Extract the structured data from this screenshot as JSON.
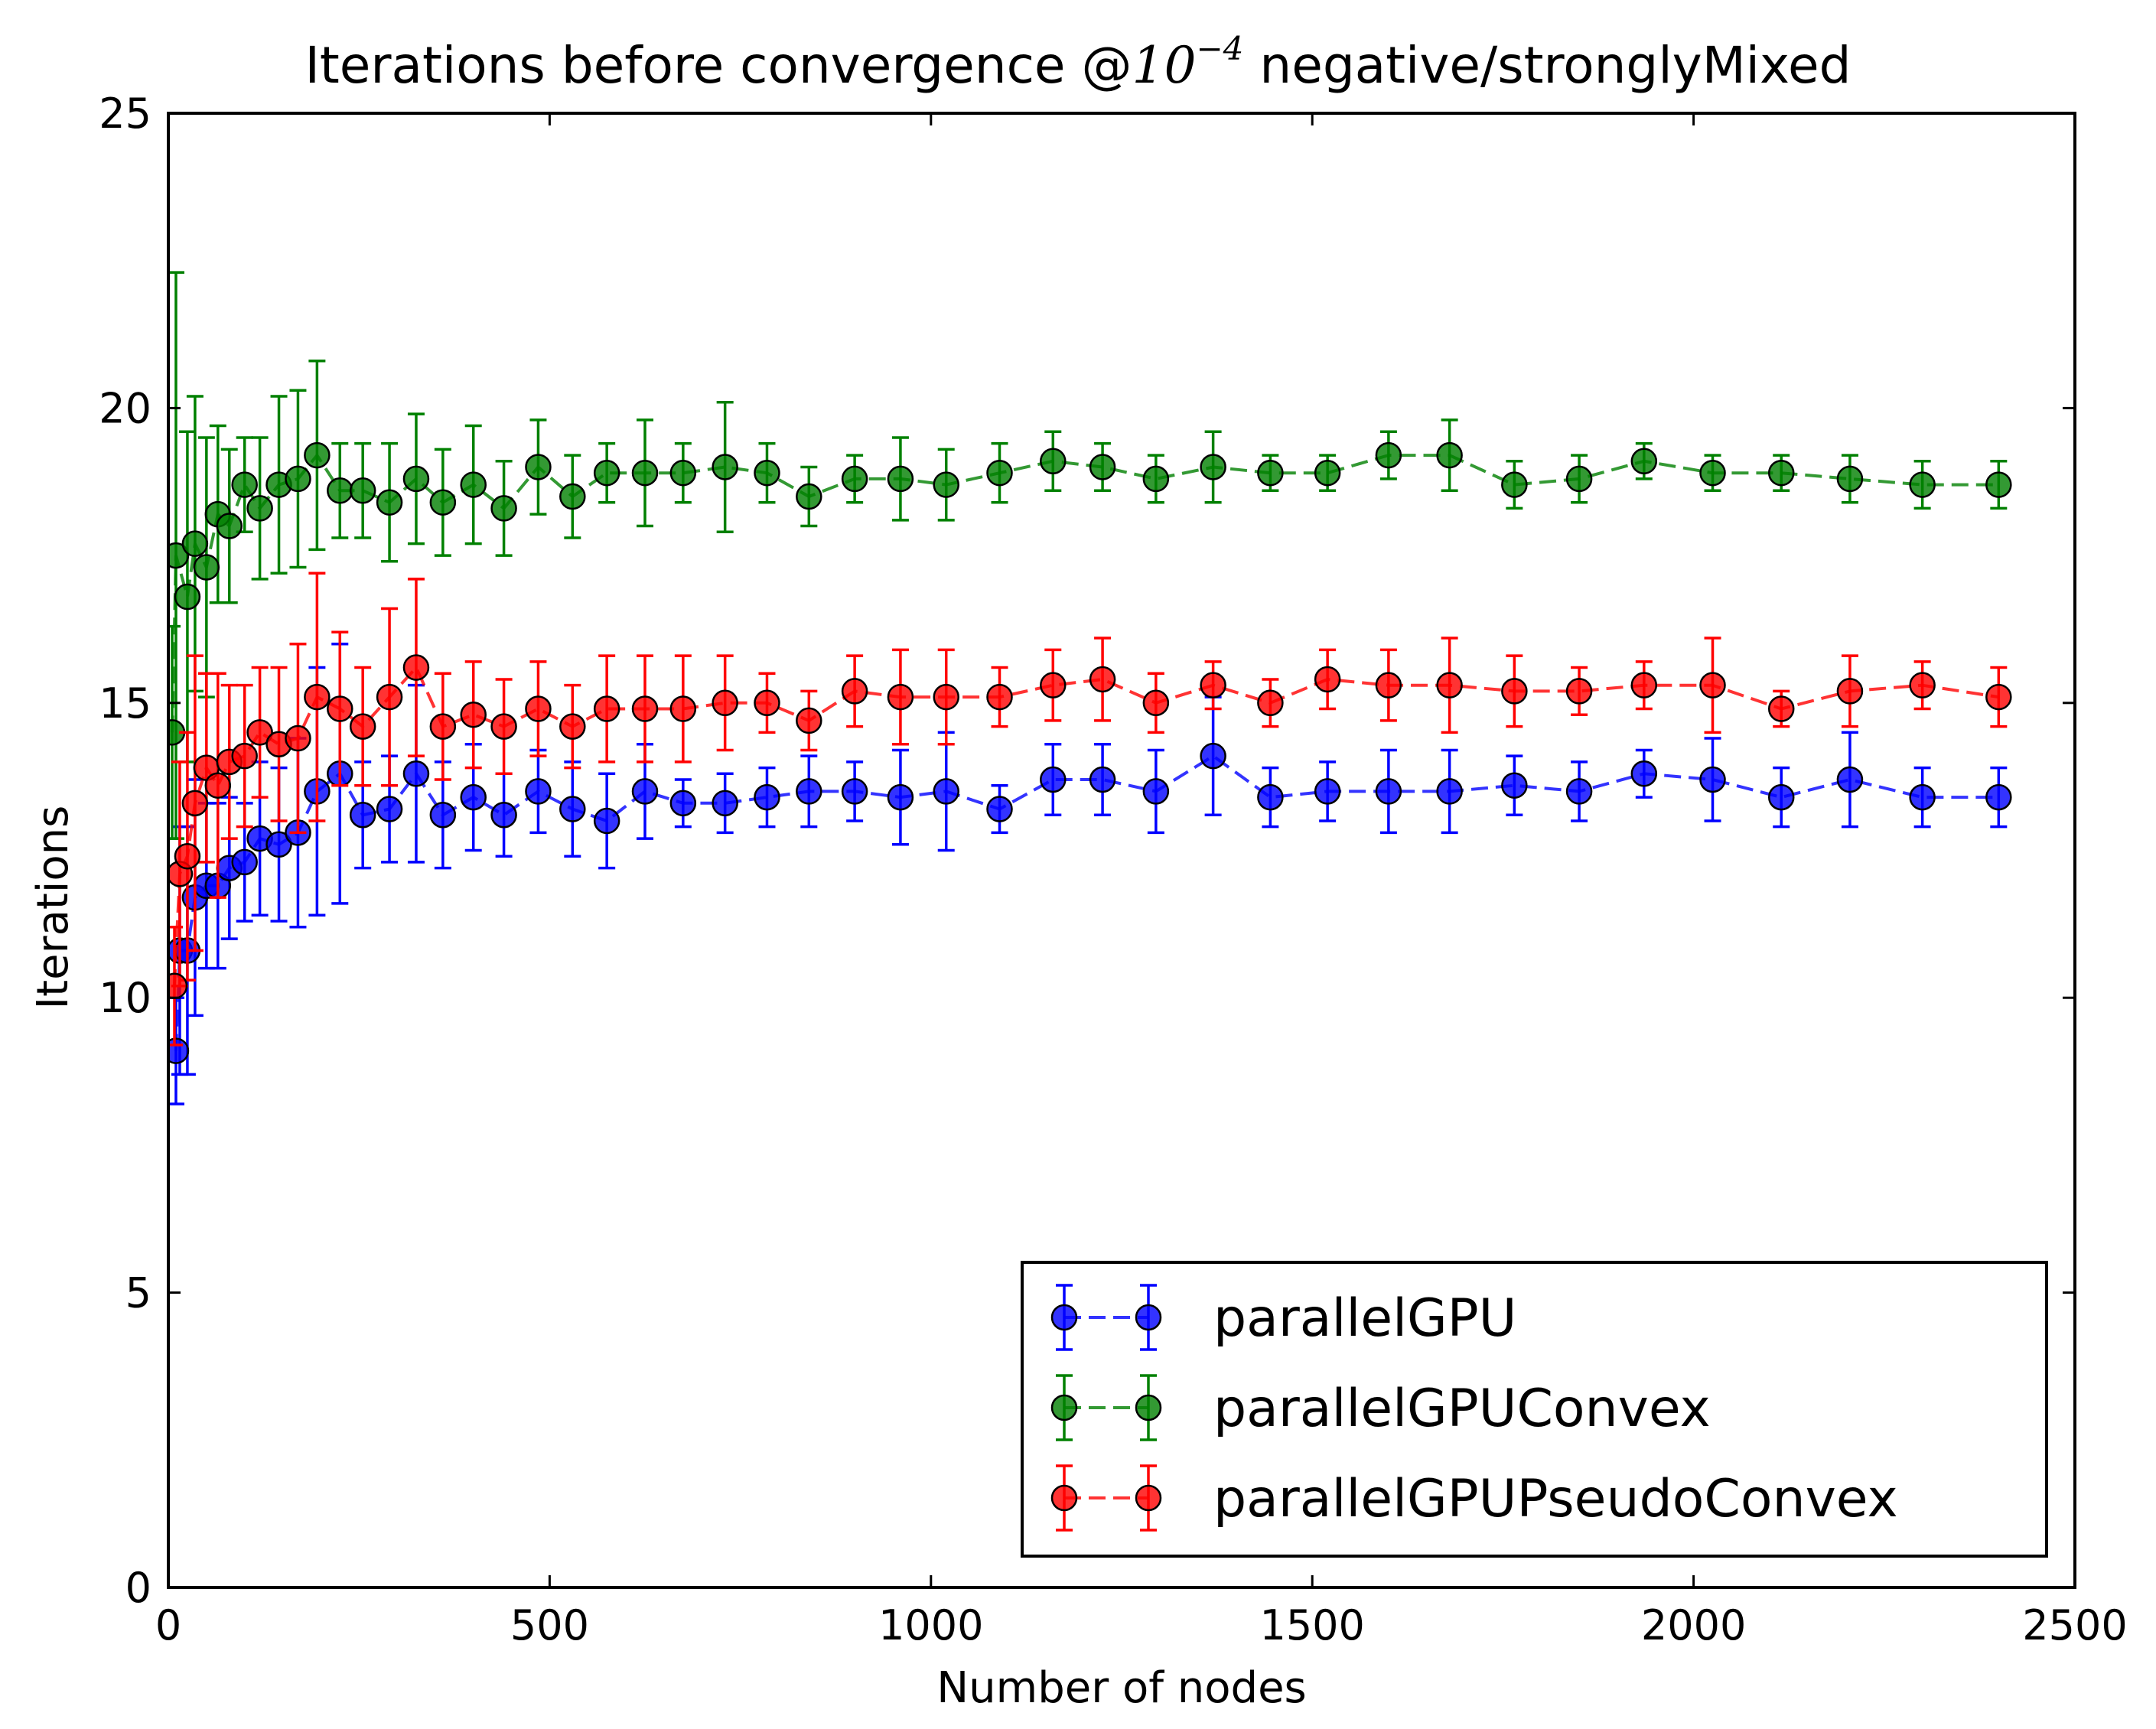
{
  "chart_data": {
    "type": "scatter",
    "title_main": "Iterations before convergence @",
    "title_math_base": "10",
    "title_math_exp": "−4",
    "title_suffix": " negative/stronglyMixed",
    "xlabel": "Number of nodes",
    "ylabel": "Iterations",
    "xlim": [
      0,
      2500
    ],
    "ylim": [
      0,
      25
    ],
    "xticks": [
      0,
      500,
      1000,
      1500,
      2000,
      2500
    ],
    "yticks": [
      0,
      5,
      10,
      15,
      20,
      25
    ],
    "grid": false,
    "legend_position": "lower-right",
    "colors": {
      "parallelGPU": "#0000ff",
      "parallelGPUConvex": "#008000",
      "parallelGPUPseudoConvex": "#ff0000"
    },
    "series": [
      {
        "name": "parallelGPU",
        "color": "#0000ff",
        "x": [
          10,
          15,
          25,
          35,
          50,
          65,
          80,
          100,
          120,
          145,
          170,
          195,
          225,
          255,
          290,
          325,
          360,
          400,
          440,
          485,
          530,
          575,
          625,
          675,
          730,
          785,
          840,
          900,
          960,
          1020,
          1090,
          1160,
          1225,
          1295,
          1370,
          1445,
          1520,
          1600,
          1680,
          1765,
          1850,
          1935,
          2025,
          2115,
          2205,
          2300,
          2400
        ],
        "y": [
          9.1,
          10.8,
          10.8,
          11.7,
          11.9,
          11.9,
          12.2,
          12.3,
          12.7,
          12.6,
          12.8,
          13.5,
          13.8,
          13.1,
          13.2,
          13.8,
          13.1,
          13.4,
          13.1,
          13.5,
          13.2,
          13.0,
          13.5,
          13.3,
          13.3,
          13.4,
          13.5,
          13.5,
          13.4,
          13.5,
          13.2,
          13.7,
          13.7,
          13.5,
          14.1,
          13.4,
          13.5,
          13.5,
          13.5,
          13.6,
          13.5,
          13.8,
          13.7,
          13.4,
          13.7,
          13.4,
          13.4
        ],
        "err": [
          0.9,
          2.1,
          2.1,
          2.0,
          1.4,
          1.4,
          1.2,
          1.0,
          1.3,
          1.3,
          1.6,
          2.1,
          2.2,
          0.9,
          0.9,
          1.5,
          0.9,
          0.9,
          0.7,
          0.7,
          0.8,
          0.8,
          0.8,
          0.4,
          0.5,
          0.5,
          0.6,
          0.5,
          0.8,
          1.0,
          0.4,
          0.6,
          0.6,
          0.7,
          1.0,
          0.5,
          0.5,
          0.7,
          0.7,
          0.5,
          0.5,
          0.4,
          0.7,
          0.5,
          0.8,
          0.5,
          0.5
        ]
      },
      {
        "name": "parallelGPUConvex",
        "color": "#008000",
        "x": [
          5,
          10,
          25,
          35,
          50,
          65,
          80,
          100,
          120,
          145,
          170,
          195,
          225,
          255,
          290,
          325,
          360,
          400,
          440,
          485,
          530,
          575,
          625,
          675,
          730,
          785,
          840,
          900,
          960,
          1020,
          1090,
          1160,
          1225,
          1295,
          1370,
          1445,
          1520,
          1600,
          1680,
          1765,
          1850,
          1935,
          2025,
          2115,
          2205,
          2300,
          2400
        ],
        "y": [
          14.5,
          17.5,
          16.8,
          17.7,
          17.3,
          18.2,
          18.0,
          18.7,
          18.3,
          18.7,
          18.8,
          19.2,
          18.6,
          18.6,
          18.4,
          18.8,
          18.4,
          18.7,
          18.3,
          19.0,
          18.5,
          18.9,
          18.9,
          18.9,
          19.0,
          18.9,
          18.5,
          18.8,
          18.8,
          18.7,
          18.9,
          19.1,
          19.0,
          18.8,
          19.0,
          18.9,
          18.9,
          19.2,
          19.2,
          18.7,
          18.8,
          19.1,
          18.9,
          18.9,
          18.8,
          18.7,
          18.7
        ],
        "err": [
          1.8,
          4.8,
          2.8,
          2.5,
          2.2,
          1.5,
          1.3,
          0.8,
          1.2,
          1.5,
          1.5,
          1.6,
          0.8,
          0.8,
          1.0,
          1.1,
          0.9,
          1.0,
          0.8,
          0.8,
          0.7,
          0.5,
          0.9,
          0.5,
          1.1,
          0.5,
          0.5,
          0.4,
          0.7,
          0.6,
          0.5,
          0.5,
          0.4,
          0.4,
          0.6,
          0.3,
          0.3,
          0.4,
          0.6,
          0.4,
          0.4,
          0.3,
          0.3,
          0.3,
          0.4,
          0.4,
          0.4
        ]
      },
      {
        "name": "parallelGPUPseudoConvex",
        "color": "#ff0000",
        "x": [
          8,
          15,
          25,
          35,
          50,
          65,
          80,
          100,
          120,
          145,
          170,
          195,
          225,
          255,
          290,
          325,
          360,
          400,
          440,
          485,
          530,
          575,
          625,
          675,
          730,
          785,
          840,
          900,
          960,
          1020,
          1090,
          1160,
          1225,
          1295,
          1370,
          1445,
          1520,
          1600,
          1680,
          1765,
          1850,
          1935,
          2025,
          2115,
          2205,
          2300,
          2400
        ],
        "y": [
          10.2,
          12.1,
          12.4,
          13.3,
          13.9,
          13.6,
          14.0,
          14.1,
          14.5,
          14.3,
          14.4,
          15.1,
          14.9,
          14.6,
          15.1,
          15.6,
          14.6,
          14.8,
          14.6,
          14.9,
          14.6,
          14.9,
          14.9,
          14.9,
          15.0,
          15.0,
          14.7,
          15.2,
          15.1,
          15.1,
          15.1,
          15.3,
          15.4,
          15.0,
          15.3,
          15.0,
          15.4,
          15.3,
          15.3,
          15.2,
          15.2,
          15.3,
          15.3,
          14.9,
          15.2,
          15.3,
          15.1
        ],
        "err": [
          1.0,
          1.9,
          2.1,
          2.5,
          1.6,
          1.9,
          1.3,
          1.2,
          1.1,
          1.3,
          1.6,
          2.1,
          1.3,
          1.0,
          1.5,
          1.5,
          0.9,
          0.9,
          0.8,
          0.8,
          0.7,
          0.9,
          0.9,
          0.9,
          0.8,
          0.5,
          0.5,
          0.6,
          0.8,
          0.8,
          0.5,
          0.6,
          0.7,
          0.5,
          0.4,
          0.4,
          0.5,
          0.6,
          0.8,
          0.6,
          0.4,
          0.4,
          0.8,
          0.3,
          0.6,
          0.4,
          0.5
        ]
      }
    ]
  }
}
